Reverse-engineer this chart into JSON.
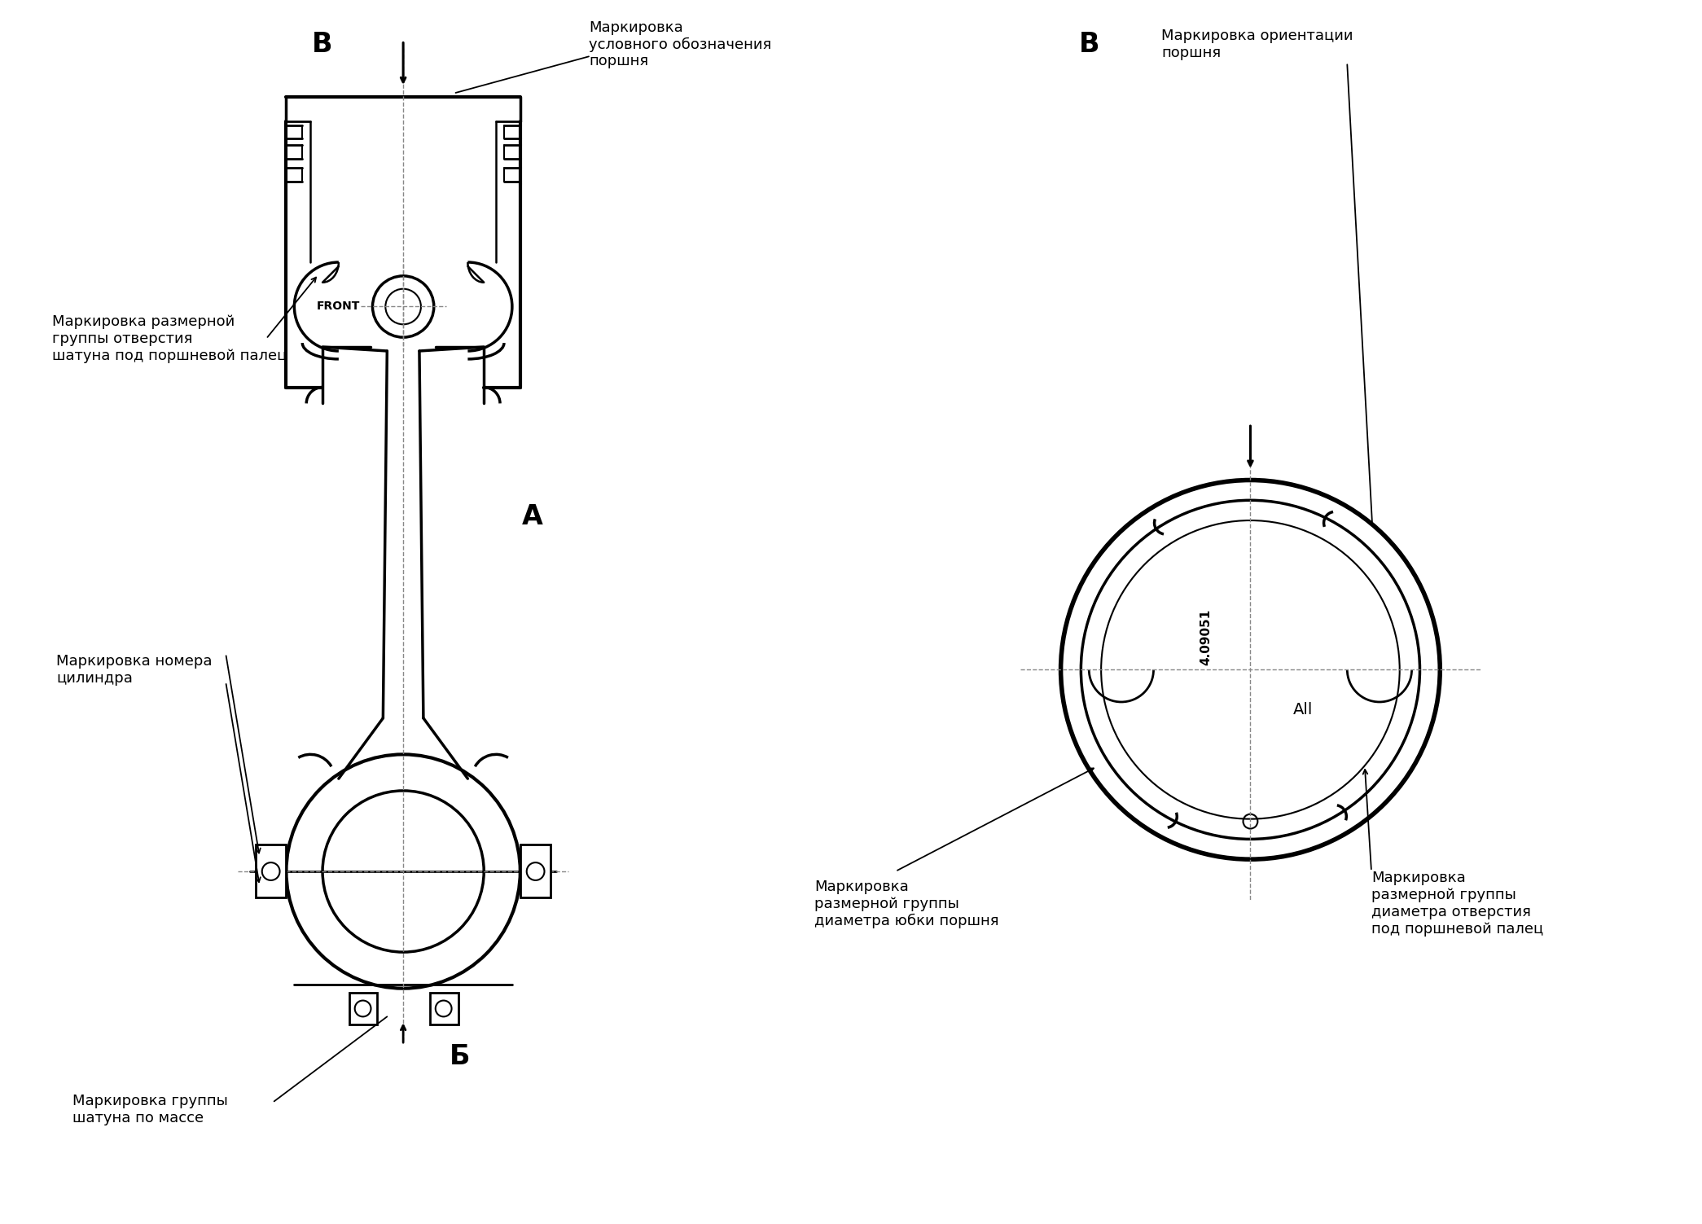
{
  "bg_color": "#ffffff",
  "line_color": "#000000",
  "cl_color": "#888888",
  "text_color": "#000000",
  "fig_width": 20.9,
  "fig_height": 15.03,
  "labels": {
    "V_top_left": "В",
    "arrow_label": "Маркировка\nусловного обозначения\nпоршня",
    "V_top_right": "В",
    "orientation_label": "Маркировка ориентации\nпоршня",
    "group_label": "Маркировка размерной\nгруппы отверстия\nшатуна под поршневой палец",
    "A_label": "А",
    "cylinder_label": "Маркировка номера\nцилиндра",
    "B_label": "Б",
    "mass_label": "Маркировка группы\nшатуна по массе",
    "skirt_label": "Маркировка\nразмерной группы\nдиаметра юбки поршня",
    "pin_label": "Маркировка\nразмерной группы\nдиаметра отверстия\nпод поршневой палец",
    "part_number": "4.09051",
    "all_label": "All",
    "front_label": "FRONT"
  }
}
